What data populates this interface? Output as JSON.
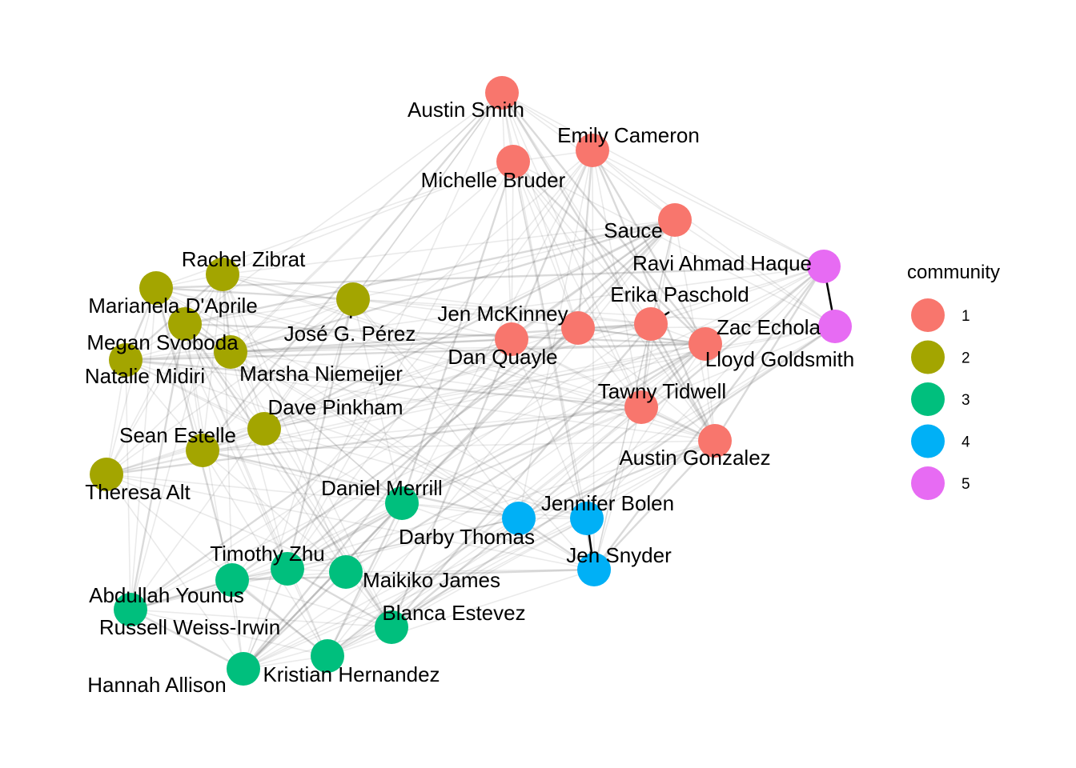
{
  "legend": {
    "title": "community",
    "items": [
      {
        "label": "1",
        "color": "#F8766D"
      },
      {
        "label": "2",
        "color": "#A3A500"
      },
      {
        "label": "3",
        "color": "#00BF7D"
      },
      {
        "label": "4",
        "color": "#00B0F6"
      },
      {
        "label": "5",
        "color": "#E76BF3"
      }
    ]
  },
  "nodes": [
    {
      "id": "austin-smith",
      "name": "Austin Smith",
      "community": 1
    },
    {
      "id": "emily-cameron",
      "name": "Emily Cameron",
      "community": 1
    },
    {
      "id": "michelle-bruder",
      "name": "Michelle Bruder",
      "community": 1
    },
    {
      "id": "sauce",
      "name": "Sauce",
      "community": 1
    },
    {
      "id": "ravi-ahmad-haque",
      "name": "Ravi Ahmad Haque",
      "community": 5
    },
    {
      "id": "lloyd-goldsmith",
      "name": "Lloyd Goldsmith",
      "community": 5
    },
    {
      "id": "erika-paschold",
      "name": "Erika Paschold",
      "community": 1
    },
    {
      "id": "jen-mckinney",
      "name": "Jen McKinney",
      "community": 1
    },
    {
      "id": "dan-quayle",
      "name": "Dan Quayle",
      "community": 1
    },
    {
      "id": "zac-echola",
      "name": "Zac Echola",
      "community": 1
    },
    {
      "id": "tawny-tidwell",
      "name": "Tawny Tidwell",
      "community": 1
    },
    {
      "id": "austin-gonzalez",
      "name": "Austin Gonzalez",
      "community": 1
    },
    {
      "id": "rachel-zibrat",
      "name": "Rachel Zibrat",
      "community": 2
    },
    {
      "id": "marianela-daprile",
      "name": "Marianela D'Aprile",
      "community": 2
    },
    {
      "id": "jose-g-perez",
      "name": "José G. Pérez",
      "community": 2
    },
    {
      "id": "megan-svoboda",
      "name": "Megan Svoboda",
      "community": 2
    },
    {
      "id": "natalie-midiri",
      "name": "Natalie Midiri",
      "community": 2
    },
    {
      "id": "marsha-niemeijer",
      "name": "Marsha Niemeijer",
      "community": 2
    },
    {
      "id": "dave-pinkham",
      "name": "Dave Pinkham",
      "community": 2
    },
    {
      "id": "sean-estelle",
      "name": "Sean Estelle",
      "community": 2
    },
    {
      "id": "theresa-alt",
      "name": "Theresa Alt",
      "community": 2
    },
    {
      "id": "daniel-merrill",
      "name": "Daniel Merrill",
      "community": 3
    },
    {
      "id": "timothy-zhu",
      "name": "Timothy Zhu",
      "community": 3
    },
    {
      "id": "maikiko-james",
      "name": "Maikiko James",
      "community": 3
    },
    {
      "id": "abdullah-younus",
      "name": "Abdullah Younus",
      "community": 3
    },
    {
      "id": "russell-weiss-irwin",
      "name": "Russell Weiss-Irwin",
      "community": 3
    },
    {
      "id": "blanca-estevez",
      "name": "Blanca Estevez",
      "community": 3
    },
    {
      "id": "kristian-hernandez",
      "name": "Kristian Hernandez",
      "community": 3
    },
    {
      "id": "hannah-allison",
      "name": "Hannah Allison",
      "community": 3
    },
    {
      "id": "darby-thomas",
      "name": "Darby Thomas",
      "community": 4
    },
    {
      "id": "jennifer-bolen",
      "name": "Jennifer Bolen",
      "community": 4
    },
    {
      "id": "jen-snyder",
      "name": "Jen Snyder",
      "community": 4
    }
  ]
}
